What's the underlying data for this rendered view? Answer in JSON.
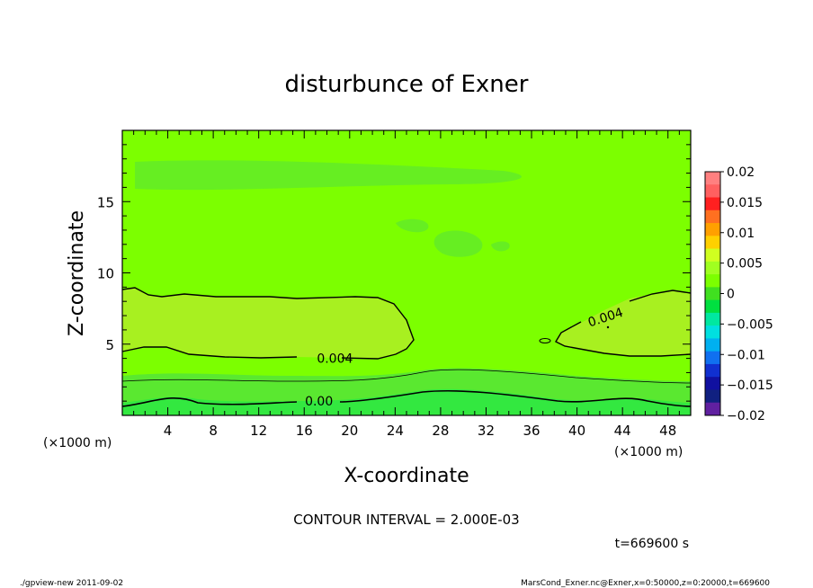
{
  "chart_data": {
    "type": "heatmap",
    "title": "disturbunce of Exner",
    "xlabel": "X-coordinate",
    "ylabel": "Z-coordinate",
    "x_unit": "(×1000 m)",
    "y_unit": "(×1000 m)",
    "xlim": [
      0,
      50
    ],
    "ylim": [
      0,
      20
    ],
    "x_ticks": [
      4,
      8,
      12,
      16,
      20,
      24,
      28,
      32,
      36,
      40,
      44,
      48
    ],
    "y_ticks": [
      5,
      10,
      15
    ],
    "colorbar": {
      "levels": [
        0.02,
        0.015,
        0.01,
        0.005,
        0,
        -0.005,
        -0.01,
        -0.015,
        -0.02
      ],
      "labels": [
        "0.02",
        "0.015",
        "0.01",
        "0.005",
        "0",
        "−0.005",
        "−0.01",
        "−0.015",
        "−0.02"
      ],
      "colors": [
        "#ff8080",
        "#ff6060",
        "#ff2020",
        "#ff7020",
        "#ffa000",
        "#ffd000",
        "#d0ff20",
        "#a0ff20",
        "#7cff00",
        "#40e020",
        "#00e040",
        "#00e8a0",
        "#00e0e0",
        "#00b0f0",
        "#1070f0",
        "#1030d0",
        "#1010a0",
        "#1010608",
        "#6020a0"
      ]
    },
    "field_colors": {
      "background": "#7cff00",
      "positive_band": "#a8f020",
      "upper_patch": "#66ee22",
      "low_band": "#5ae830",
      "bottom_band": "#33e840"
    },
    "contour_labels": [
      {
        "text": "0.004",
        "x": 18.7,
        "z": 4.0
      },
      {
        "text": "0.004",
        "x": 42.5,
        "z": 6.9
      },
      {
        "text": "0.00",
        "x": 17.3,
        "z": 1.0
      }
    ],
    "contour_interval": "CONTOUR INTERVAL = 2.000E-03",
    "time": "t=669600 s"
  },
  "footer": {
    "left": "./gpview-new  2011-09-02",
    "right": "MarsCond_Exner.nc@Exner,x=0:50000,z=0:20000,t=669600"
  }
}
